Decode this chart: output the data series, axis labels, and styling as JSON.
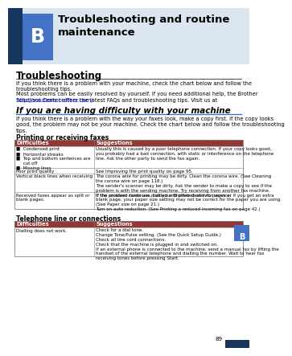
{
  "page_bg": "#ffffff",
  "header_light_bg": "#c5d9f1",
  "header_dark_strip": "#1f4e79",
  "header_blue_box": "#4472c4",
  "header_title": "Troubleshooting and routine\nmaintenance",
  "header_letter": "B",
  "section1_title": "Troubleshooting",
  "section1_para1": "If you think there is a problem with your machine, check the chart below and follow the\ntroubleshooting tips.",
  "section1_para2": "Most problems can be easily resolved by yourself. If you need additional help, the Brother\nSolutions Center offers the latest FAQs and troubleshooting tips. Visit us at",
  "section1_link": "http://solutions.brother.com/",
  "section2_title": "If you are having difficulty with your machine",
  "section2_para": "If you think there is a problem with the way your faxes look, make a copy first. If the copy looks\ngood, the problem may not be your machine. Check the chart below and follow the troubleshooting\ntips.",
  "table1_title": "Printing or receiving faxes",
  "table_header_bg": "#943634",
  "table1_col1_header": "Difficulties",
  "table1_col2_header": "Suggestions",
  "table1_row1_col1": "■  Condensed print\n■  Horizontal streaks\n■  Top and bottom sentences are\n     cut off\n■  Missing lines",
  "table1_row1_col2": "Usually this is caused by a poor telephone connection. If your copy looks good,\nyou probably had a bad connection, with static or interference on the telephone\nline. Ask the other party to send the fax again.",
  "table1_row2_col1": "Poor print quality",
  "table1_row2_col2": "See Improving the print quality on page 95.",
  "table1_row3_col1": "Vertical black lines when receiving",
  "table1_row3_col2": "The corona wire for printing may be dirty. Clean the corona wire. (See Cleaning\nthe corona wire on page 118.)\nThe sender's scanner may be dirty. Ask the sender to make a copy to see if the\nproblem is with the sending machine. Try receiving from another fax machine.\nIf the problem continues, call your Brother dealer for service.",
  "table1_row4_col1": "Received faxes appear as split or\nblank pages.",
  "table1_row4_col2": "If the received faxes are divided and printed on two pages or if you get an extra\nblank page, your paper size setting may not be correct for the paper you are using.\n(See Paper size on page 21.)\nTurn on auto reduction. (See Printing a reduced incoming fax on page 42.)",
  "table2_title": "Telephone line or connections",
  "table2_col1_header": "Difficulties",
  "table2_col2_header": "Suggestions",
  "table2_row1_col1": "Dialling does not work.",
  "table2_row1_col2": "Check for a dial tone.\nChange Tone/Pulse setting. (See the Quick Setup Guide.)\nCheck all line cord connections.\nCheck that the machine is plugged in and switched on.\nIf an external phone is connected to the machine, send a manual fax by lifting the\nhandset of the external telephone and dialling the number. Wait to hear fax\nreceiving tones before pressing Start.",
  "page_number": "89",
  "side_tab_color": "#4472c4",
  "footer_bar_color": "#17375e",
  "link_color": "#0000ff",
  "table_border_color": "#808080",
  "section2_line_color": "#4472c4"
}
